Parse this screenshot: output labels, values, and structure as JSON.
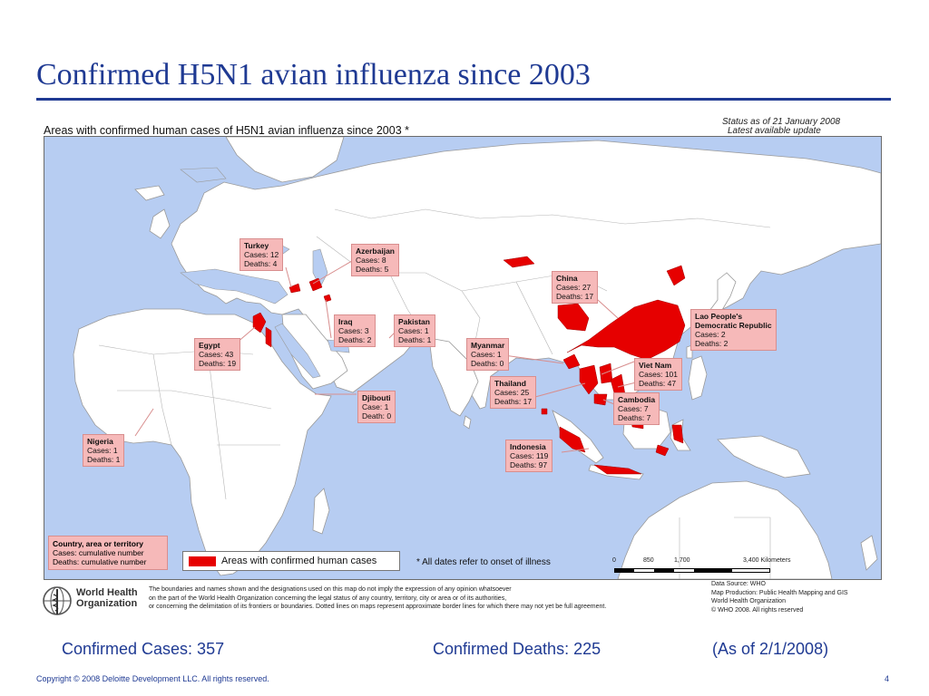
{
  "slide_title": "Confirmed H5N1 avian influenza since 2003",
  "map": {
    "heading": "Areas with confirmed human cases of H5N1 avian influenza since 2003 *",
    "status_line1": "Status as of 21 January 2008",
    "status_line2": "Latest available update",
    "callouts": [
      {
        "name": "Turkey",
        "line1": "Cases: 12",
        "line2": "Deaths: 4"
      },
      {
        "name": "Azerbaijan",
        "line1": "Cases: 8",
        "line2": "Deaths: 5"
      },
      {
        "name": "China",
        "line1": "Cases: 27",
        "line2": "Deaths: 17"
      },
      {
        "name": "Lao People's",
        "name2": "Democratic Republic",
        "line1": "Cases: 2",
        "line2": "Deaths: 2"
      },
      {
        "name": "Iraq",
        "line1": "Cases: 3",
        "line2": "Deaths: 2"
      },
      {
        "name": "Pakistan",
        "line1": "Cases: 1",
        "line2": "Deaths: 1"
      },
      {
        "name": "Egypt",
        "line1": "Cases: 43",
        "line2": "Deaths: 19"
      },
      {
        "name": "Myanmar",
        "line1": "Cases: 1",
        "line2": "Deaths: 0"
      },
      {
        "name": "Viet Nam",
        "line1": "Cases: 101",
        "line2": "Deaths: 47"
      },
      {
        "name": "Thailand",
        "line1": "Cases: 25",
        "line2": "Deaths: 17"
      },
      {
        "name": "Cambodia",
        "line1": "Cases: 7",
        "line2": "Deaths: 7"
      },
      {
        "name": "Djibouti",
        "line1": "Case: 1",
        "line2": "Death: 0"
      },
      {
        "name": "Nigeria",
        "line1": "Cases: 1",
        "line2": "Deaths: 1"
      },
      {
        "name": "Indonesia",
        "line1": "Cases: 119",
        "line2": "Deaths: 97"
      }
    ],
    "legend": {
      "title": "Country, area or territory",
      "line1": "Cases: cumulative number",
      "line2": "Deaths: cumulative number",
      "key_label": "Areas with confirmed human cases",
      "highlight_color": "#e60000"
    },
    "footnote": "*  All dates refer to onset of illness",
    "scale": {
      "t0": "0",
      "t1": "850",
      "t2": "1,700",
      "t3": "3,400 Kilometers"
    },
    "colors": {
      "ocean": "#b7cdf2",
      "land": "#ffffff",
      "affected": "#e60000",
      "callout_fill": "#f6b9b9"
    }
  },
  "who": {
    "name_line1": "World Health",
    "name_line2": "Organization",
    "logo_icon": "who-emblem-icon",
    "disclaimer": [
      "The boundaries and names shown and the designations used on this map do not imply the expression of any opinion whatsoever",
      "on the part of the World Health Organization concerning the legal status of any country, territory, city or area or of its authorities,",
      "or concerning the delimitation of its frontiers or boundaries.  Dotted lines on maps represent approximate border lines for which there may not yet be full agreement."
    ],
    "source": [
      "Data Source: WHO",
      "Map Production: Public Health Mapping and GIS",
      "World Health Organization",
      "© WHO 2008. All rights reserved"
    ]
  },
  "summary": {
    "cases": "Confirmed Cases: 357",
    "deaths": "Confirmed Deaths: 225",
    "as_of": "(As of 2/1/2008)"
  },
  "footer": {
    "copyright": "Copyright © 2008 Deloitte Development LLC. All rights reserved.",
    "page": "4"
  }
}
